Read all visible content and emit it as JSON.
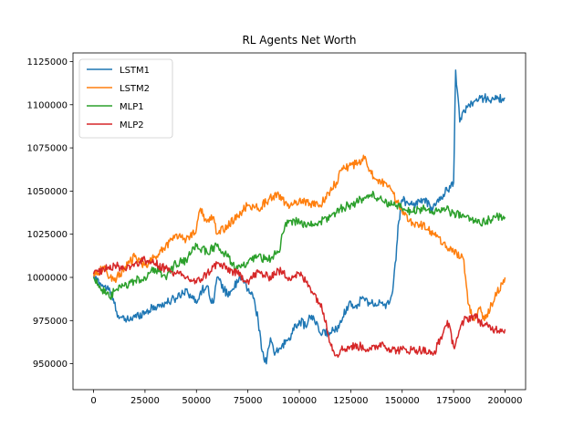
{
  "chart_data": {
    "type": "line",
    "title": "RL Agents Net Worth",
    "xlabel": "",
    "ylabel": "",
    "xlim": [
      -10000,
      210000
    ],
    "ylim": [
      935000,
      1130000
    ],
    "xticks": [
      0,
      25000,
      50000,
      75000,
      100000,
      125000,
      150000,
      175000,
      200000
    ],
    "yticks": [
      950000,
      975000,
      1000000,
      1025000,
      1050000,
      1075000,
      1100000,
      1125000
    ],
    "grid": false,
    "legend_position": "top-left",
    "series": [
      {
        "name": "LSTM1",
        "color": "#1f77b4",
        "x": [
          0,
          5000,
          8000,
          10000,
          12000,
          15000,
          20000,
          25000,
          30000,
          35000,
          40000,
          45000,
          50000,
          52000,
          55000,
          58000,
          60000,
          65000,
          70000,
          72000,
          75000,
          78000,
          80000,
          82000,
          84000,
          86000,
          88000,
          90000,
          95000,
          100000,
          103000,
          106000,
          110000,
          115000,
          118000,
          120000,
          125000,
          128000,
          130000,
          135000,
          140000,
          142000,
          145000,
          147000,
          148000,
          150000,
          155000,
          160000,
          165000,
          170000,
          175000,
          176000,
          178000,
          180000,
          185000,
          190000,
          195000,
          200000
        ],
        "y": [
          1000000,
          995000,
          992000,
          985000,
          978000,
          975000,
          977000,
          980000,
          983000,
          985000,
          988000,
          993000,
          985000,
          992000,
          995000,
          985000,
          1000000,
          990000,
          997000,
          1000000,
          993000,
          988000,
          975000,
          957000,
          950000,
          965000,
          955000,
          958000,
          965000,
          975000,
          972000,
          978000,
          968000,
          968000,
          970000,
          975000,
          986000,
          982000,
          988000,
          985000,
          985000,
          982000,
          990000,
          1010000,
          1030000,
          1045000,
          1042000,
          1045000,
          1040000,
          1048000,
          1055000,
          1120000,
          1090000,
          1097000,
          1102000,
          1104000,
          1103000,
          1104000
        ]
      },
      {
        "name": "LSTM2",
        "color": "#ff7f0e",
        "x": [
          0,
          5000,
          10000,
          15000,
          20000,
          25000,
          30000,
          35000,
          40000,
          45000,
          50000,
          52000,
          55000,
          58000,
          60000,
          65000,
          70000,
          75000,
          80000,
          85000,
          90000,
          95000,
          100000,
          105000,
          110000,
          115000,
          118000,
          120000,
          125000,
          130000,
          132000,
          135000,
          140000,
          145000,
          150000,
          155000,
          160000,
          165000,
          170000,
          175000,
          180000,
          182000,
          185000,
          188000,
          190000,
          195000,
          200000
        ],
        "y": [
          1002000,
          1005000,
          998000,
          1005000,
          1012000,
          1007000,
          1012000,
          1018000,
          1025000,
          1022000,
          1028000,
          1040000,
          1032000,
          1035000,
          1025000,
          1030000,
          1035000,
          1042000,
          1040000,
          1045000,
          1048000,
          1040000,
          1045000,
          1043000,
          1042000,
          1050000,
          1055000,
          1062000,
          1065000,
          1066000,
          1070000,
          1060000,
          1055000,
          1050000,
          1038000,
          1032000,
          1030000,
          1025000,
          1020000,
          1015000,
          1010000,
          985000,
          975000,
          983000,
          975000,
          988000,
          1000000
        ]
      },
      {
        "name": "MLP1",
        "color": "#2ca02c",
        "x": [
          0,
          3000,
          6000,
          8000,
          10000,
          15000,
          20000,
          25000,
          30000,
          35000,
          40000,
          45000,
          50000,
          55000,
          60000,
          65000,
          70000,
          75000,
          80000,
          85000,
          90000,
          93000,
          95000,
          100000,
          105000,
          110000,
          115000,
          120000,
          125000,
          130000,
          135000,
          140000,
          145000,
          150000,
          155000,
          160000,
          165000,
          170000,
          175000,
          180000,
          185000,
          190000,
          195000,
          200000
        ],
        "y": [
          1000000,
          995000,
          990000,
          988000,
          992000,
          995000,
          998000,
          1000000,
          1005000,
          1000000,
          1008000,
          1010000,
          1018000,
          1015000,
          1018000,
          1012000,
          1005000,
          1008000,
          1012000,
          1010000,
          1015000,
          1030000,
          1033000,
          1032000,
          1030000,
          1032000,
          1035000,
          1040000,
          1042000,
          1045000,
          1048000,
          1045000,
          1042000,
          1040000,
          1038000,
          1040000,
          1038000,
          1040000,
          1037000,
          1035000,
          1033000,
          1032000,
          1035000,
          1035000
        ]
      },
      {
        "name": "MLP2",
        "color": "#d62728",
        "x": [
          0,
          5000,
          10000,
          15000,
          20000,
          25000,
          30000,
          35000,
          40000,
          45000,
          50000,
          55000,
          60000,
          65000,
          70000,
          75000,
          80000,
          85000,
          90000,
          95000,
          100000,
          105000,
          110000,
          113000,
          115000,
          118000,
          120000,
          125000,
          130000,
          135000,
          140000,
          145000,
          150000,
          155000,
          160000,
          165000,
          170000,
          172000,
          175000,
          180000,
          185000,
          190000,
          195000,
          200000
        ],
        "y": [
          1002000,
          1005000,
          1007000,
          1005000,
          1008000,
          1010000,
          1008000,
          1005000,
          1002000,
          1000000,
          997000,
          1002000,
          1008000,
          1005000,
          1002000,
          998000,
          1003000,
          1000000,
          1004000,
          1000000,
          1002000,
          995000,
          985000,
          975000,
          962000,
          955000,
          958000,
          960000,
          960000,
          958000,
          962000,
          958000,
          958000,
          958000,
          958000,
          955000,
          968000,
          975000,
          960000,
          975000,
          978000,
          972000,
          970000,
          970000
        ]
      }
    ]
  }
}
